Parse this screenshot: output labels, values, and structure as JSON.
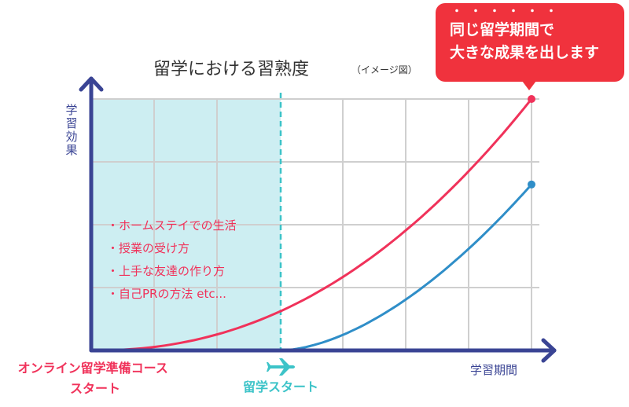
{
  "chart_data": {
    "type": "line",
    "title": "留学における習熟度",
    "title_note": "（イメージ図）",
    "xlabel": "学習期間",
    "ylabel": "学習効果",
    "grid": true,
    "shaded_region_label_start": "オンライン留学準備コース\nスタート",
    "divider_label": "留学スタート",
    "divider_icon": "airplane-icon",
    "bullets": [
      "ホームステイでの生活",
      "授業の受け方",
      "上手な友達の作り方",
      "自己PRの方法 etc..."
    ],
    "series": [
      {
        "color": "#f0325a",
        "start_x": 0.0,
        "end_x": 1.0,
        "end_y": 1.0
      },
      {
        "color": "#2f8ec8",
        "start_x": 0.43,
        "end_x": 1.0,
        "end_y": 0.66
      }
    ],
    "callout": {
      "emphasis_dots": "・・・・・・",
      "line1": "同じ留学期間で",
      "line2": "大きな成果を出します"
    }
  },
  "colors": {
    "axis": "#3a4494",
    "grid": "#cfcfcf",
    "shade": "#cdeef2",
    "divider": "#3cc3c8",
    "pink": "#f0325a",
    "blue": "#2f8ec8",
    "callout": "#f0323d"
  }
}
